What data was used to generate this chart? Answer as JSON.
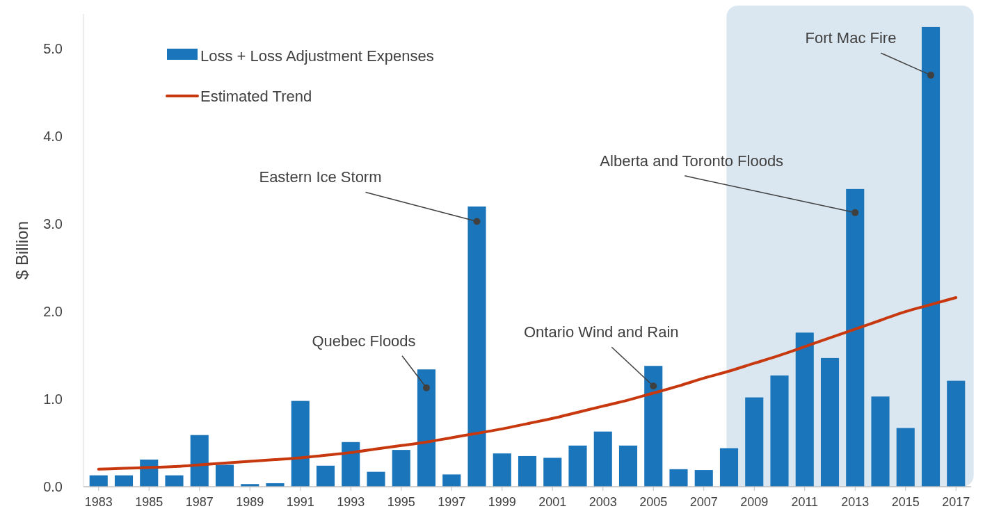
{
  "chart_data": {
    "type": "bar",
    "ylabel": "$ Billion",
    "x": [
      1983,
      1984,
      1985,
      1986,
      1987,
      1988,
      1989,
      1990,
      1991,
      1992,
      1993,
      1994,
      1995,
      1996,
      1997,
      1998,
      1999,
      2000,
      2001,
      2002,
      2003,
      2004,
      2005,
      2006,
      2007,
      2008,
      2009,
      2010,
      2011,
      2012,
      2013,
      2014,
      2015,
      2016,
      2017
    ],
    "series": [
      {
        "name": "Loss + Loss Adjustment Expenses",
        "color": "#1a75bb",
        "values": [
          0.13,
          0.13,
          0.31,
          0.13,
          0.59,
          0.25,
          0.03,
          0.04,
          0.98,
          0.24,
          0.51,
          0.17,
          0.42,
          1.34,
          0.14,
          3.2,
          0.38,
          0.35,
          0.33,
          0.47,
          0.63,
          0.47,
          1.38,
          0.2,
          0.19,
          0.44,
          1.02,
          1.27,
          1.76,
          1.47,
          3.4,
          1.03,
          0.67,
          5.25,
          1.21
        ]
      },
      {
        "name": "Estimated Trend",
        "type": "line",
        "color": "#c8380f",
        "values": [
          0.2,
          0.21,
          0.22,
          0.23,
          0.25,
          0.27,
          0.29,
          0.31,
          0.33,
          0.36,
          0.39,
          0.43,
          0.47,
          0.51,
          0.56,
          0.61,
          0.66,
          0.72,
          0.78,
          0.85,
          0.92,
          0.99,
          1.07,
          1.15,
          1.24,
          1.32,
          1.41,
          1.5,
          1.6,
          1.7,
          1.8,
          1.9,
          2.0,
          2.08,
          2.16
        ]
      }
    ],
    "xlim": [
      1982.4,
      2017.6
    ],
    "xticks": [
      1983,
      1985,
      1987,
      1989,
      1991,
      1993,
      1995,
      1997,
      1999,
      2001,
      2003,
      2005,
      2007,
      2009,
      2011,
      2013,
      2015,
      2017
    ],
    "yticks": [
      {
        "value": 0,
        "label": "0.0"
      },
      {
        "value": 1,
        "label": "1.0"
      },
      {
        "value": 2,
        "label": "2.0"
      },
      {
        "value": 3,
        "label": "3.0"
      },
      {
        "value": 4,
        "label": "4.0"
      },
      {
        "value": 5,
        "label": "5.0"
      }
    ],
    "ylim": [
      0,
      5.4
    ],
    "bands": [
      {
        "axis": "x",
        "from": 2007.9,
        "to": 2017.7,
        "color": "#dbe7f0"
      }
    ],
    "annotations": [
      {
        "text": "Quebec Floods",
        "x": 1996,
        "y": 1.13
      },
      {
        "text": "Eastern Ice Storm",
        "x": 1998,
        "y": 3.03
      },
      {
        "text": "Ontario Wind and Rain",
        "x": 2005,
        "y": 1.15
      },
      {
        "text": "Alberta and Toronto Floods",
        "x": 2013,
        "y": 3.13
      },
      {
        "text": "Fort Mac Fire",
        "x": 2016,
        "y": 4.7
      }
    ],
    "legend": "top left",
    "grid": false
  }
}
